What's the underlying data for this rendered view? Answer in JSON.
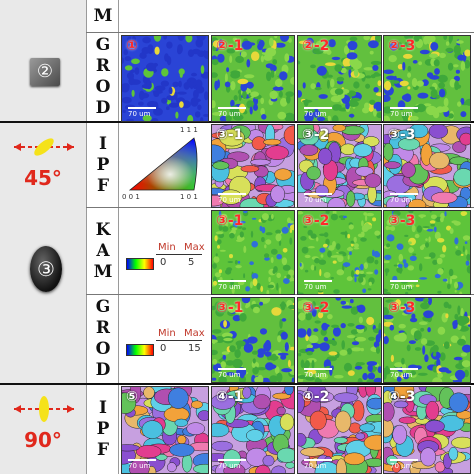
{
  "rows": [
    {
      "label": "M",
      "labels": [
        "",
        "",
        "",
        ""
      ]
    },
    {
      "label": "GROD",
      "labels": [
        "①",
        "②-1",
        "②-2",
        "②-3"
      ]
    },
    {
      "label": "IPF",
      "labels": [
        "",
        "③-1",
        "③-2",
        "③-3"
      ]
    },
    {
      "label": "KAM",
      "labels": [
        "",
        "③-1",
        "③-2",
        "③-3"
      ]
    },
    {
      "label": "GROD",
      "labels": [
        "",
        "③-1",
        "③-2",
        "③-3"
      ]
    },
    {
      "label": "IPF",
      "labels": [
        "⑤",
        "④-1",
        "④-2",
        "④-3"
      ]
    }
  ],
  "samples": [
    {
      "id": "②"
    },
    {
      "angle": "45°"
    },
    {
      "id": "③"
    },
    {
      "angle": "90°"
    }
  ],
  "ipf_key": {
    "corner_top": "1 1 1",
    "corner_left": "0 0 1",
    "corner_right": "1 0 1"
  },
  "kam_legend": {
    "min_label": "Min",
    "max_label": "Max",
    "min_value": "0",
    "max_value": "5"
  },
  "grod_legend": {
    "min_label": "Min",
    "max_label": "Max",
    "min_value": "0",
    "max_value": "15"
  },
  "scale_bar": "70 um",
  "colors": {
    "accent_red": "#e0281c",
    "grod_blue": "#2a44d6",
    "kam_green": "#5ec43a"
  }
}
